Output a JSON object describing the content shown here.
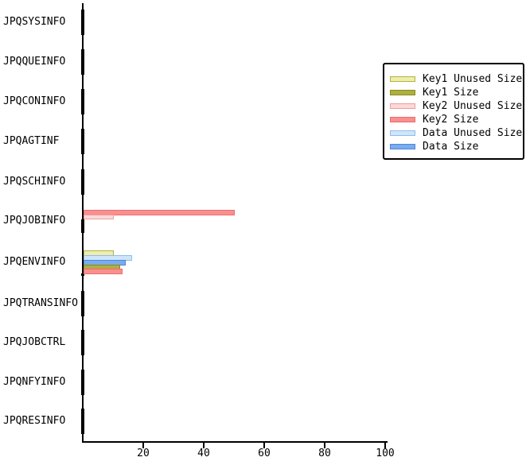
{
  "chart_data": {
    "type": "bar",
    "orientation": "horizontal",
    "title": "",
    "xlabel": "",
    "ylabel": "",
    "xlim": [
      0,
      100
    ],
    "xticks": [
      20,
      40,
      60,
      80,
      100
    ],
    "grid": false,
    "legend_position": "upper-right-box",
    "categories": [
      "JPQSYSINFO",
      "JPQQUEINFO",
      "JPQCONINFO",
      "JPQAGTINF",
      "JPQSCHINFO",
      "JPQJOBINFO",
      "JPQENVINFO",
      "JPQTRANSINFO",
      "JPQJOBCTRL",
      "JPQNFYINFO",
      "JPQRESINFO"
    ],
    "series": [
      {
        "name": "Key1 Unused Size",
        "fill": "#EDEDAE",
        "border": "#B3B33C",
        "values": [
          0,
          0,
          0,
          0,
          0,
          0,
          10,
          0,
          0,
          0,
          0
        ]
      },
      {
        "name": "Key1 Size",
        "fill": "#AFAF3F",
        "border": "#8A8A20",
        "values": [
          0,
          0,
          0,
          0,
          0,
          0,
          12,
          0,
          0,
          0,
          0
        ]
      },
      {
        "name": "Key2 Unused Size",
        "fill": "#FBD9D9",
        "border": "#F29B9B",
        "values": [
          0,
          0,
          0,
          0,
          0,
          10,
          0,
          0,
          0,
          0,
          0
        ]
      },
      {
        "name": "Key2 Size",
        "fill": "#F89090",
        "border": "#EF6B6B",
        "values": [
          0,
          0,
          0,
          0,
          0,
          50,
          13,
          0,
          0,
          0,
          0
        ]
      },
      {
        "name": "Data Unused Size",
        "fill": "#CFE5FA",
        "border": "#8FBCEC",
        "values": [
          0,
          0,
          0,
          0,
          0,
          0,
          16,
          0,
          0,
          0,
          0
        ]
      },
      {
        "name": "Data Size",
        "fill": "#79ACF0",
        "border": "#4E86D6",
        "values": [
          0,
          0,
          0,
          0,
          0,
          0,
          14,
          0,
          0,
          0,
          0
        ]
      }
    ],
    "colors": {
      "axis": "#000000",
      "text": "#000000",
      "background": "#ffffff"
    }
  }
}
